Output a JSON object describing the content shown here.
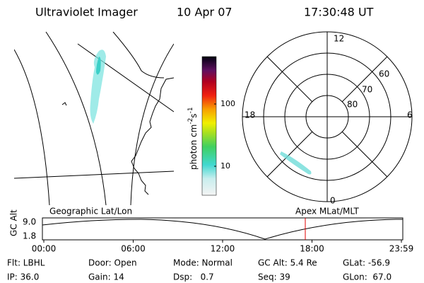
{
  "header": {
    "title": "Ultraviolet Imager",
    "date": "10 Apr 07",
    "time": "17:30:48 UT"
  },
  "colorbar": {
    "label": {
      "base": "photon cm",
      "exp1": "-2",
      "mid": "s",
      "exp2": "-1"
    },
    "ticks": [
      "100",
      "10"
    ]
  },
  "polar": {
    "mlt_labels": {
      "top": "12",
      "left": "18",
      "right": "6",
      "bottom": "0"
    },
    "lat_labels": [
      "60",
      "70",
      "80"
    ]
  },
  "timeline": {
    "left_label": "Geographic Lat/Lon",
    "right_label": "Apex MLat/MLT",
    "y_label": "GC Alt",
    "yticks": [
      "9.0",
      "1.8"
    ],
    "xticks": [
      "00:00",
      "06:00",
      "12:00",
      "18:00",
      "23:59"
    ]
  },
  "info": {
    "rows": [
      [
        "Flt: LBHL",
        "Door: Open",
        "Mode: Normal",
        "GC Alt: 5.4 Re",
        "GLat: -56.9"
      ],
      [
        "IP: 36.0",
        "Gain: 14",
        "Dsp:   0.7",
        "Seq: 39",
        "GLon:  67.0"
      ]
    ]
  }
}
